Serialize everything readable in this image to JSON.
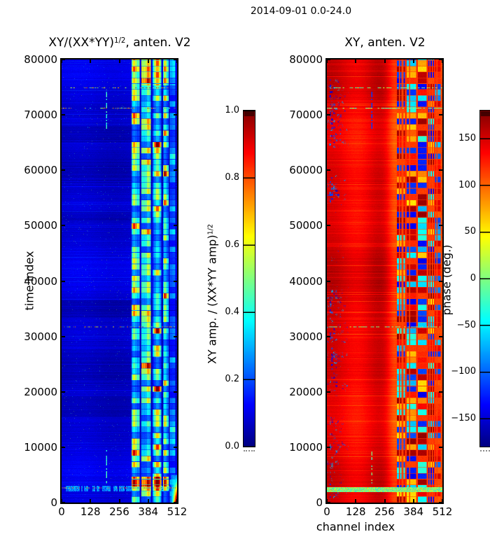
{
  "figure": {
    "title": "2014-09-01 0.0-24.0"
  },
  "left_plot": {
    "title_base": "XY/(XX*YY)",
    "title_sup": "1/2",
    "title_rest": ", anten. V2",
    "ylabel": "time index",
    "ytick_labels": [
      "0",
      "10000",
      "20000",
      "30000",
      "40000",
      "50000",
      "60000",
      "70000",
      "80000"
    ],
    "xtick_labels": [
      "0",
      "128",
      "256",
      "384",
      "512"
    ]
  },
  "right_plot": {
    "title": "XY, anten. V2",
    "xlabel": "channel index",
    "ytick_labels": [
      "0",
      "10000",
      "20000",
      "30000",
      "40000",
      "50000",
      "60000",
      "70000",
      "80000"
    ],
    "xtick_labels": [
      "0",
      "128",
      "256",
      "384",
      "512"
    ]
  },
  "left_colorbar": {
    "tick_labels": [
      "1.0",
      "0.8",
      "0.6",
      "0.4",
      "0.2",
      "0.0"
    ],
    "label_base": "XY amp. / (XX*YY amp)",
    "label_sup": "1/2"
  },
  "right_colorbar": {
    "tick_labels": [
      "150",
      "100",
      "50",
      "0",
      "−50",
      "−100",
      "−150"
    ],
    "label": "phase (deg.)"
  },
  "chart_data": [
    {
      "type": "heatmap",
      "title": "XY/(XX*YY)^(1/2), anten. V2",
      "xlabel": "",
      "ylabel": "time index",
      "x_range": [
        0,
        512
      ],
      "y_range": [
        0,
        80000
      ],
      "x_ticks": [
        0,
        128,
        256,
        384,
        512
      ],
      "y_ticks": [
        0,
        10000,
        20000,
        30000,
        40000,
        50000,
        60000,
        70000,
        80000
      ],
      "colormap": "jet",
      "clim": [
        0.0,
        1.0
      ],
      "colorbar_ticks": [
        1.0,
        0.8,
        0.6,
        0.4,
        0.2,
        0.0
      ],
      "colorbar_label": "XY amp. / (XX*YY amp)^(1/2)",
      "background_level": 0.08,
      "stripe_groups": [
        {
          "c0": 310,
          "c1": 346,
          "amp": 1.0
        },
        {
          "c0": 354,
          "c1": 396,
          "amp": 1.0
        },
        {
          "c0": 404,
          "c1": 442,
          "amp": 1.0
        },
        {
          "c0": 450,
          "c1": 474,
          "amp": 0.92
        },
        {
          "c0": 480,
          "c1": 504,
          "amp": 0.5
        }
      ],
      "dark_time_bands": [
        [
          15500,
          19200
        ],
        [
          33500,
          36500
        ],
        [
          50500,
          52500
        ],
        [
          65000,
          68000
        ]
      ],
      "rfi_rows_time": [
        74900,
        71200,
        31700,
        2650
      ],
      "rfi_column_channel": 200,
      "rfi_column_time_spans": [
        [
          67500,
          74500
        ],
        [
          3500,
          9500
        ]
      ],
      "bottom_speckle_band_time": [
        2050,
        3050
      ],
      "corner_blob": {
        "channel_min": 486,
        "time_max": 5000
      },
      "description": "Correlation amplitude near 0.05-0.12 (dark blue) over channels 0-310; blocky stripes of 0.2-0.7 (cyan/green/yellow) in channel groups 310-505; multicoloured speckled RFI rows near times 74900, 71200, 31700 and 2650; dotted RFI column at channel 200; bright orange blob at channels >486 below time 5000."
    },
    {
      "type": "heatmap",
      "title": "XY, anten. V2",
      "xlabel": "channel index",
      "ylabel": "",
      "x_range": [
        0,
        512
      ],
      "y_range": [
        0,
        80000
      ],
      "x_ticks": [
        0,
        128,
        256,
        384,
        512
      ],
      "y_ticks": [
        0,
        10000,
        20000,
        30000,
        40000,
        50000,
        60000,
        70000,
        80000
      ],
      "colormap": "jet",
      "clim": [
        -180,
        180
      ],
      "colorbar_ticks": [
        150,
        100,
        50,
        0,
        -50,
        -100,
        -150
      ],
      "colorbar_label": "phase (deg.)",
      "background_phase_deg": 150,
      "orange_column_center_channel": 303,
      "blue_speckle_channel_max": 95,
      "blue_speckle_time_bands": [
        [
          64000,
          76500
        ],
        [
          53500,
          60000
        ],
        [
          20000,
          38500
        ],
        [
          800,
          16000
        ]
      ],
      "stripe_groups": [
        {
          "c0": 310,
          "c1": 346,
          "amp": 1.0
        },
        {
          "c0": 354,
          "c1": 396,
          "amp": 1.0
        },
        {
          "c0": 404,
          "c1": 442,
          "amp": 1.0
        },
        {
          "c0": 450,
          "c1": 474,
          "amp": 0.92
        },
        {
          "c0": 480,
          "c1": 504,
          "amp": 0.5
        }
      ],
      "rfi_rows_time": [
        74900,
        71200,
        31700,
        2650
      ],
      "rfi_column_channel": 200,
      "rfi_column_time_spans": [
        [
          67500,
          74500
        ],
        [
          3500,
          9500
        ]
      ],
      "bottom_band_time": [
        1900,
        2800
      ],
      "description": "Phase mostly near +150 deg (deep red) with an orange column near channel 303; dense blue negative-phase speckle patches at channels 0-95 in several time bands; blocky cyan/blue/yellow phase blocks with orange separators over channel groups 310-505; cyan/yellow RFI rows at times 74900, 71200, 31700; bright green/yellow speckle band near time 1900-2800."
    }
  ]
}
